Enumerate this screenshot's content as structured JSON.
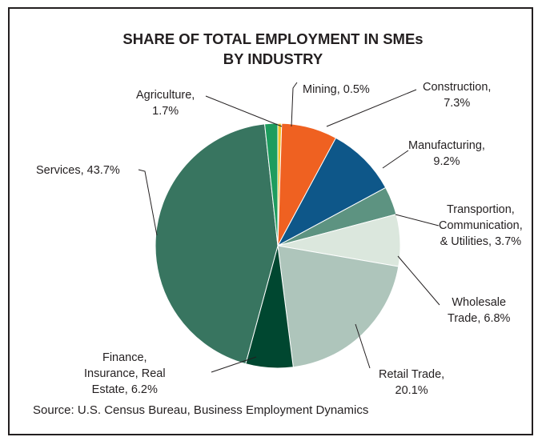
{
  "chart_data": {
    "type": "pie",
    "title_line1": "SHARE OF TOTAL EMPLOYMENT IN SMEs",
    "title_line2": "BY INDUSTRY",
    "slices": [
      {
        "label": "Mining, 0.5%",
        "value": 0.5,
        "color": "#f2c12e"
      },
      {
        "label": "Construction, 7.3%",
        "value": 7.3,
        "color": "#ef6121"
      },
      {
        "label": "Manufacturing, 9.2%",
        "value": 9.2,
        "color": "#0e5789"
      },
      {
        "label": "Transportion, Communication, & Utilities, 3.7%",
        "value": 3.7,
        "color": "#5d9381"
      },
      {
        "label": "Wholesale Trade, 6.8%",
        "value": 6.8,
        "color": "#dbe7dd"
      },
      {
        "label": "Retail Trade, 20.1%",
        "value": 20.1,
        "color": "#aec5bb"
      },
      {
        "label": "Finance, Insurance, Real Estate, 6.2%",
        "value": 6.2,
        "color": "#004730"
      },
      {
        "label": "Services, 43.7%",
        "value": 43.7,
        "color": "#387560"
      },
      {
        "label": "Agriculture, 1.7%",
        "value": 1.7,
        "color": "#1d9c5e"
      }
    ]
  },
  "labels": {
    "agriculture": [
      "Agriculture,",
      "1.7%"
    ],
    "mining": [
      "Mining, 0.5%"
    ],
    "construction": [
      "Construction,",
      "7.3%"
    ],
    "manufacturing": [
      "Manufacturing,",
      "9.2%"
    ],
    "transport": [
      "Transportion,",
      "Communication,",
      "& Utilities, 3.7%"
    ],
    "wholesale": [
      "Wholesale",
      "Trade, 6.8%"
    ],
    "retail": [
      "Retail Trade,",
      "20.1%"
    ],
    "finance": [
      "Finance,",
      "Insurance, Real",
      "Estate, 6.2%"
    ],
    "services": [
      "Services, 43.7%"
    ]
  },
  "source": "Source: U.S. Census Bureau, Business Employment Dynamics"
}
